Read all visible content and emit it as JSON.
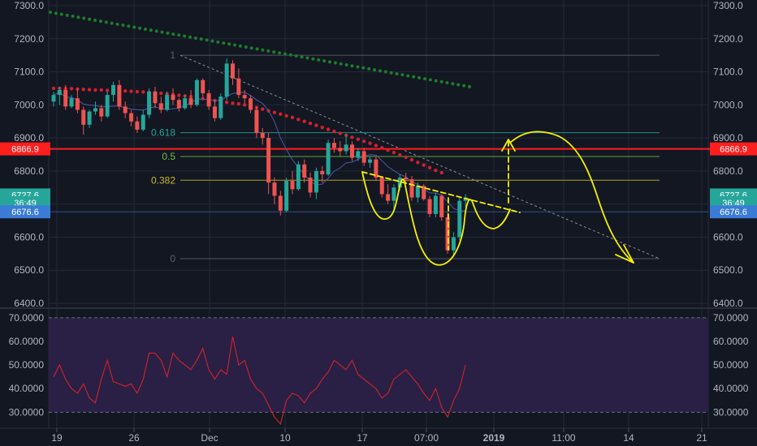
{
  "colors": {
    "background": "#131722",
    "grid": "#232838",
    "bull": "#26a69a",
    "bear": "#ef5350",
    "ma_red": "#d2202f",
    "ma_green": "#1e7d2a",
    "rsi_line": "#c3242b",
    "rsi_band": "#2a1f45",
    "annotation": "#f5f000",
    "resistance": "#ff1e1e",
    "current_tag": "#26a69a",
    "blue_tag": "#3a7bd5",
    "fib_line": "#5b6270",
    "fib_0_618": "#26a69a",
    "fib_0_5": "#6fbf3f",
    "fib_0_382": "#c8b82a"
  },
  "chart_data": [
    {
      "type": "candlestick",
      "title": "",
      "y_ticks": [
        "7300.0",
        "7200.0",
        "7100.0",
        "7000.0",
        "6900.0",
        "6800.0",
        "6700.0",
        "6600.0",
        "6500.0",
        "6400.0"
      ],
      "y_range": [
        6400,
        7300
      ],
      "x_ticks": [
        "19",
        "26",
        "Dec",
        "10",
        "17",
        "07:00",
        "2019",
        "11:00",
        "14",
        "21"
      ],
      "grid": true,
      "price_tags": [
        {
          "label": "6866.9",
          "value": 6866.9,
          "color": "red"
        },
        {
          "label": "6727.6",
          "value": 6727.6,
          "color": "teal"
        },
        {
          "label": "36:49",
          "value": 6704,
          "color": "teal"
        },
        {
          "label": "6676.6",
          "value": 6676.6,
          "color": "blue"
        }
      ],
      "resistance_level": 6866.9,
      "fibonacci": [
        {
          "label": "1",
          "value": 7150
        },
        {
          "label": "0.618",
          "value": 6916
        },
        {
          "label": "0.5",
          "value": 6844
        },
        {
          "label": "0.382",
          "value": 6772
        },
        {
          "label": "0",
          "value": 6535
        }
      ],
      "series": [
        {
          "ohlc": [
            [
              7010,
              7040,
              6995,
              7030
            ],
            [
              7030,
              7055,
              7000,
              7045
            ],
            [
              7045,
              7060,
              6985,
              6995
            ],
            [
              6995,
              7030,
              6990,
              7020
            ],
            [
              7020,
              7050,
              6975,
              6985
            ],
            [
              6985,
              6995,
              6910,
              6940
            ],
            [
              6940,
              6985,
              6930,
              6980
            ],
            [
              6980,
              7010,
              6970,
              6990
            ],
            [
              6990,
              7000,
              6950,
              6965
            ],
            [
              6965,
              7040,
              6960,
              7030
            ],
            [
              7030,
              7070,
              7010,
              7060
            ],
            [
              7060,
              7075,
              6985,
              6995
            ],
            [
              6995,
              7010,
              6960,
              6975
            ],
            [
              6975,
              6985,
              6935,
              6950
            ],
            [
              6950,
              6965,
              6915,
              6925
            ],
            [
              6925,
              6985,
              6920,
              6970
            ],
            [
              6970,
              7050,
              6960,
              7040
            ],
            [
              7040,
              7055,
              6990,
              7005
            ],
            [
              7005,
              7025,
              6975,
              6985
            ],
            [
              6985,
              7040,
              6980,
              7030
            ],
            [
              7030,
              7050,
              7000,
              7015
            ],
            [
              7015,
              7020,
              6980,
              6990
            ],
            [
              6990,
              7030,
              6985,
              7020
            ],
            [
              7020,
              7045,
              6990,
              7000
            ],
            [
              7000,
              7080,
              6995,
              7075
            ],
            [
              7075,
              7080,
              7025,
              7035
            ],
            [
              7035,
              7045,
              6985,
              6995
            ],
            [
              6995,
              7015,
              6950,
              6960
            ],
            [
              6960,
              7035,
              6955,
              7025
            ],
            [
              7025,
              7140,
              7015,
              7125
            ],
            [
              7125,
              7135,
              7060,
              7080
            ],
            [
              7080,
              7110,
              7020,
              7030
            ],
            [
              7030,
              7045,
              7005,
              7020
            ],
            [
              7020,
              7030,
              6975,
              6985
            ],
            [
              6985,
              6995,
              6900,
              6915
            ],
            [
              6915,
              6930,
              6880,
              6900
            ],
            [
              6900,
              6915,
              6730,
              6765
            ],
            [
              6765,
              6780,
              6700,
              6725
            ],
            [
              6725,
              6740,
              6665,
              6680
            ],
            [
              6680,
              6780,
              6675,
              6770
            ],
            [
              6770,
              6800,
              6730,
              6745
            ],
            [
              6745,
              6830,
              6740,
              6820
            ],
            [
              6820,
              6835,
              6765,
              6780
            ],
            [
              6780,
              6795,
              6720,
              6735
            ],
            [
              6735,
              6810,
              6715,
              6800
            ],
            [
              6800,
              6815,
              6765,
              6790
            ],
            [
              6790,
              6895,
              6785,
              6885
            ],
            [
              6885,
              6900,
              6855,
              6870
            ],
            [
              6870,
              6890,
              6845,
              6860
            ],
            [
              6860,
              6910,
              6850,
              6880
            ],
            [
              6880,
              6890,
              6830,
              6840
            ],
            [
              6840,
              6870,
              6830,
              6860
            ],
            [
              6860,
              6870,
              6815,
              6825
            ],
            [
              6825,
              6845,
              6810,
              6835
            ],
            [
              6835,
              6845,
              6770,
              6780
            ],
            [
              6780,
              6785,
              6720,
              6730
            ],
            [
              6730,
              6760,
              6700,
              6710
            ],
            [
              6710,
              6760,
              6680,
              6750
            ],
            [
              6750,
              6790,
              6740,
              6780
            ],
            [
              6780,
              6795,
              6760,
              6775
            ],
            [
              6775,
              6785,
              6710,
              6720
            ],
            [
              6720,
              6765,
              6705,
              6755
            ],
            [
              6755,
              6760,
              6710,
              6715
            ],
            [
              6715,
              6725,
              6660,
              6670
            ],
            [
              6670,
              6735,
              6660,
              6725
            ],
            [
              6725,
              6730,
              6650,
              6660
            ],
            [
              6660,
              6675,
              6550,
              6560
            ],
            [
              6560,
              6615,
              6545,
              6600
            ],
            [
              6600,
              6720,
              6590,
              6710
            ],
            [
              6710,
              6730,
              6690,
              6720
            ]
          ]
        },
        {
          "name": "",
          "values": [
            7050,
            7050,
            7049,
            7049,
            7048,
            7047,
            7046,
            7045,
            7045,
            7044,
            7044,
            7043,
            7042,
            7041,
            7040,
            7039,
            7038,
            7037,
            7035,
            7033,
            7031,
            7029,
            7027,
            7025,
            7022,
            7019,
            7016,
            7013,
            7010,
            7008,
            7005,
            7003,
            7000,
            6996,
            6992,
            6987,
            6982,
            6977,
            6972,
            6967,
            6962,
            6956,
            6950,
            6944,
            6938,
            6932,
            6926,
            6920,
            6914,
            6908,
            6902,
            6896,
            6890,
            6884,
            6877,
            6870,
            6863,
            6856,
            6849,
            6842,
            6834,
            6826,
            6818,
            6810,
            6802,
            6795
          ]
        },
        {
          "name": "",
          "values": [
            7280,
            7200,
            7150,
            7120,
            7095,
            7075,
            7055
          ]
        }
      ]
    },
    {
      "type": "line",
      "y_ticks": [
        "70.0000",
        "60.0000",
        "50.0000",
        "40.0000",
        "30.0000"
      ],
      "y_range": [
        26,
        72
      ],
      "band": [
        30,
        70
      ],
      "series": [
        {
          "values": [
            45,
            50,
            44,
            40,
            38,
            42,
            36,
            34,
            44,
            52,
            43,
            42,
            41,
            42,
            38,
            44,
            55,
            55,
            52,
            45,
            55,
            52,
            50,
            48,
            52,
            57,
            48,
            44,
            48,
            46,
            62,
            50,
            52,
            44,
            40,
            38,
            33,
            28,
            25,
            35,
            38,
            37,
            34,
            38,
            40,
            44,
            47,
            52,
            50,
            48,
            52,
            46,
            44,
            42,
            40,
            36,
            38,
            44,
            46,
            48,
            45,
            42,
            38,
            35,
            40,
            32,
            28,
            35,
            40,
            50
          ]
        }
      ]
    }
  ]
}
